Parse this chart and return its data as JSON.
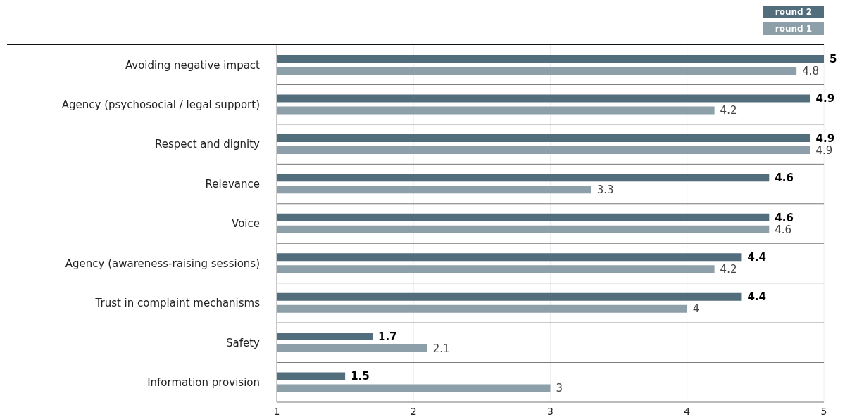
{
  "chart_data": {
    "type": "bar",
    "orientation": "horizontal",
    "categories": [
      "Avoiding negative impact",
      "Agency (psychosocial / legal support)",
      "Respect and dignity",
      "Relevance",
      "Voice",
      "Agency (awareness-raising sessions)",
      "Trust in complaint mechanisms",
      "Safety",
      "Information provision"
    ],
    "series": [
      {
        "name": "round 2",
        "color": "#526e7c",
        "values": [
          5,
          4.9,
          4.9,
          4.6,
          4.6,
          4.4,
          4.4,
          1.7,
          1.5
        ]
      },
      {
        "name": "round 1",
        "color": "#8d9fa8",
        "values": [
          4.8,
          4.2,
          4.9,
          3.3,
          4.6,
          4.2,
          4,
          2.1,
          3
        ]
      }
    ],
    "xlim": [
      1,
      5
    ],
    "xticks": [
      1,
      2,
      3,
      4,
      5
    ],
    "grid": true,
    "legend": "top right",
    "data_labels": true
  }
}
